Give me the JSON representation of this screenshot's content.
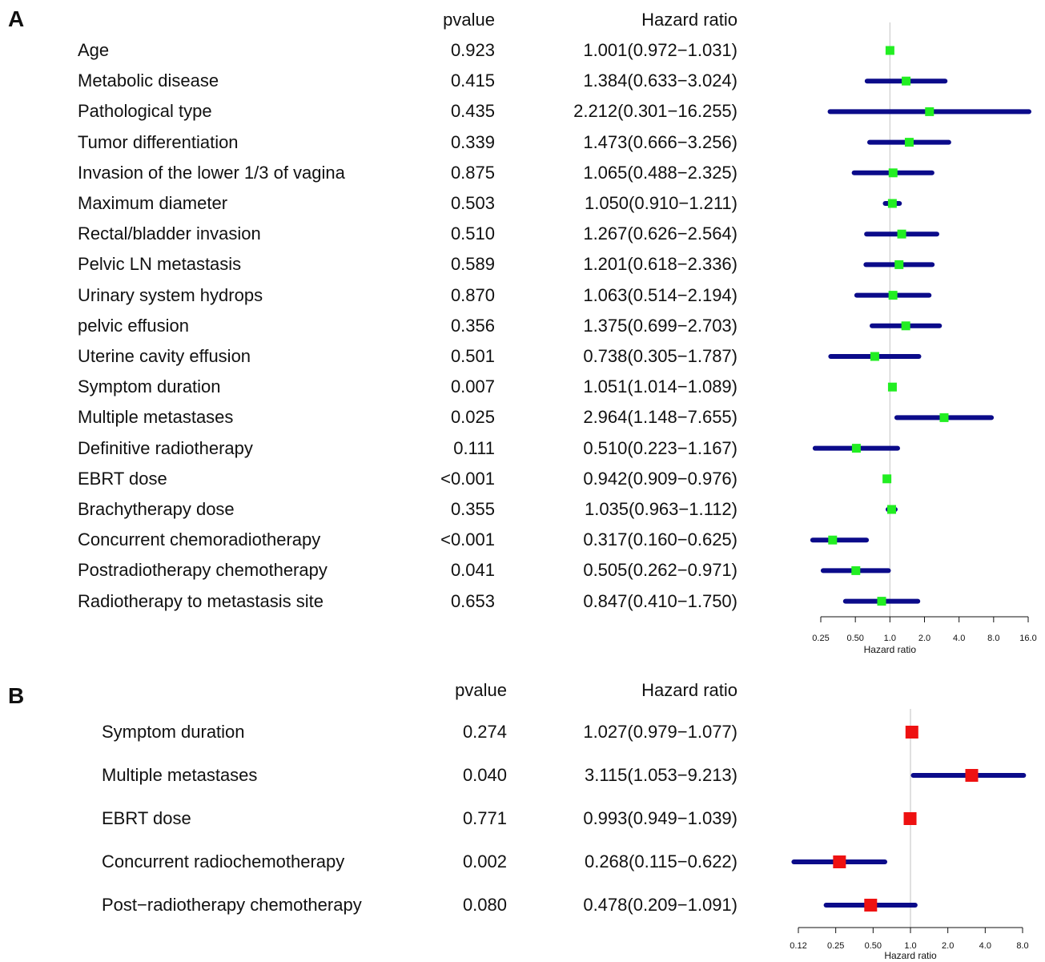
{
  "chart_data": [
    {
      "type": "forest",
      "panel": "A",
      "headers": {
        "pvalue": "pvalue",
        "hr": "Hazard ratio"
      },
      "xlabel": "Hazard ratio",
      "x_scale": "log2",
      "xlim": [
        0.2,
        16.0
      ],
      "ticks": [
        "0.25",
        "0.50",
        "1.0",
        "2.0",
        "4.0",
        "8.0",
        "16.0"
      ],
      "tick_values": [
        0.25,
        0.5,
        1.0,
        2.0,
        4.0,
        8.0,
        16.0
      ],
      "reference_line": 1.0,
      "marker_color": "#22ee22",
      "ci_color": "#0b0b8a",
      "rows": [
        {
          "label": "Age",
          "pvalue": "0.923",
          "hr_text": "1.001(0.972−1.031)",
          "hr": 1.001,
          "lo": 0.972,
          "hi": 1.031
        },
        {
          "label": "Metabolic disease",
          "pvalue": "0.415",
          "hr_text": "1.384(0.633−3.024)",
          "hr": 1.384,
          "lo": 0.633,
          "hi": 3.024
        },
        {
          "label": "Pathological type",
          "pvalue": "0.435",
          "hr_text": "2.212(0.301−16.255)",
          "hr": 2.212,
          "lo": 0.301,
          "hi": 16.255
        },
        {
          "label": "Tumor differentiation",
          "pvalue": "0.339",
          "hr_text": "1.473(0.666−3.256)",
          "hr": 1.473,
          "lo": 0.666,
          "hi": 3.256
        },
        {
          "label": "Invasion of the lower 1/3 of vagina",
          "pvalue": "0.875",
          "hr_text": "1.065(0.488−2.325)",
          "hr": 1.065,
          "lo": 0.488,
          "hi": 2.325
        },
        {
          "label": "Maximum diameter",
          "pvalue": "0.503",
          "hr_text": "1.050(0.910−1.211)",
          "hr": 1.05,
          "lo": 0.91,
          "hi": 1.211
        },
        {
          "label": "Rectal/bladder invasion",
          "pvalue": "0.510",
          "hr_text": "1.267(0.626−2.564)",
          "hr": 1.267,
          "lo": 0.626,
          "hi": 2.564
        },
        {
          "label": "Pelvic LN metastasis",
          "pvalue": "0.589",
          "hr_text": "1.201(0.618−2.336)",
          "hr": 1.201,
          "lo": 0.618,
          "hi": 2.336
        },
        {
          "label": "Urinary system hydrops",
          "pvalue": "0.870",
          "hr_text": "1.063(0.514−2.194)",
          "hr": 1.063,
          "lo": 0.514,
          "hi": 2.194
        },
        {
          "label": "pelvic effusion",
          "pvalue": "0.356",
          "hr_text": "1.375(0.699−2.703)",
          "hr": 1.375,
          "lo": 0.699,
          "hi": 2.703
        },
        {
          "label": "Uterine cavity effusion",
          "pvalue": "0.501",
          "hr_text": "0.738(0.305−1.787)",
          "hr": 0.738,
          "lo": 0.305,
          "hi": 1.787
        },
        {
          "label": "Symptom duration",
          "pvalue": "0.007",
          "hr_text": "1.051(1.014−1.089)",
          "hr": 1.051,
          "lo": 1.014,
          "hi": 1.089
        },
        {
          "label": "Multiple metastases",
          "pvalue": "0.025",
          "hr_text": "2.964(1.148−7.655)",
          "hr": 2.964,
          "lo": 1.148,
          "hi": 7.655
        },
        {
          "label": "Definitive radiotherapy",
          "pvalue": "0.111",
          "hr_text": "0.510(0.223−1.167)",
          "hr": 0.51,
          "lo": 0.223,
          "hi": 1.167
        },
        {
          "label": "EBRT dose",
          "pvalue": "<0.001",
          "hr_text": "0.942(0.909−0.976)",
          "hr": 0.942,
          "lo": 0.909,
          "hi": 0.976
        },
        {
          "label": "Brachytherapy dose",
          "pvalue": "0.355",
          "hr_text": "1.035(0.963−1.112)",
          "hr": 1.035,
          "lo": 0.963,
          "hi": 1.112
        },
        {
          "label": "Concurrent chemoradiotherapy",
          "pvalue": "<0.001",
          "hr_text": "0.317(0.160−0.625)",
          "hr": 0.317,
          "lo": 0.16,
          "hi": 0.625
        },
        {
          "label": "Postradiotherapy chemotherapy",
          "pvalue": "0.041",
          "hr_text": "0.505(0.262−0.971)",
          "hr": 0.505,
          "lo": 0.262,
          "hi": 0.971
        },
        {
          "label": "Radiotherapy to metastasis site",
          "pvalue": "0.653",
          "hr_text": "0.847(0.410−1.750)",
          "hr": 0.847,
          "lo": 0.41,
          "hi": 1.75
        }
      ]
    },
    {
      "type": "forest",
      "panel": "B",
      "headers": {
        "pvalue": "pvalue",
        "hr": "Hazard ratio"
      },
      "xlabel": "Hazard ratio",
      "x_scale": "log2",
      "xlim": [
        0.11,
        9.3
      ],
      "ticks": [
        "0.12",
        "0.25",
        "0.50",
        "1.0",
        "2.0",
        "4.0",
        "8.0"
      ],
      "tick_values": [
        0.125,
        0.25,
        0.5,
        1.0,
        2.0,
        4.0,
        8.0
      ],
      "reference_line": 1.0,
      "marker_color": "#ee1111",
      "ci_color": "#0b0b8a",
      "rows": [
        {
          "label": "Symptom duration",
          "pvalue": "0.274",
          "hr_text": "1.027(0.979−1.077)",
          "hr": 1.027,
          "lo": 0.979,
          "hi": 1.077
        },
        {
          "label": "Multiple metastases",
          "pvalue": "0.040",
          "hr_text": "3.115(1.053−9.213)",
          "hr": 3.115,
          "lo": 1.053,
          "hi": 9.213
        },
        {
          "label": "EBRT dose",
          "pvalue": "0.771",
          "hr_text": "0.993(0.949−1.039)",
          "hr": 0.993,
          "lo": 0.949,
          "hi": 1.039
        },
        {
          "label": "Concurrent radiochemotherapy",
          "pvalue": "0.002",
          "hr_text": "0.268(0.115−0.622)",
          "hr": 0.268,
          "lo": 0.115,
          "hi": 0.622
        },
        {
          "label": "Post−radiotherapy chemotherapy",
          "pvalue": "0.080",
          "hr_text": "0.478(0.209−1.091)",
          "hr": 0.478,
          "lo": 0.209,
          "hi": 1.091
        }
      ]
    }
  ]
}
